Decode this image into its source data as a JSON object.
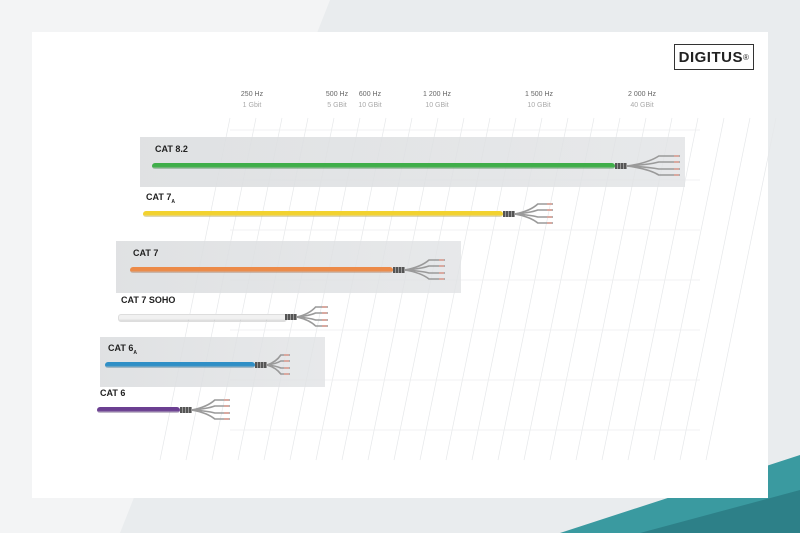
{
  "brand": {
    "logo": "DIGITUS",
    "registered": "®"
  },
  "colors": {
    "teal": "#3a9aa0",
    "background": "#e9ecee"
  },
  "chart_data": {
    "type": "bar",
    "title": "",
    "xlabel": "",
    "ylabel": "",
    "axis_ticks": [
      {
        "hz": "250 Hz",
        "rate": "1 Gbit"
      },
      {
        "hz": "500 Hz",
        "rate": "5 GBit"
      },
      {
        "hz": "600 Hz",
        "rate": "10 GBit"
      },
      {
        "hz": "1 200 Hz",
        "rate": "10 GBit"
      },
      {
        "hz": "1 500 Hz",
        "rate": "10 GBit"
      },
      {
        "hz": "2 000 Hz",
        "rate": "40 GBit"
      }
    ],
    "categories": [
      {
        "label": "CAT 8.2",
        "sub": "",
        "value": 2000,
        "color": "#3fae49",
        "shaded": true
      },
      {
        "label": "CAT 7",
        "sub": "A",
        "value": 1500,
        "color": "#f2d22e",
        "shaded": false
      },
      {
        "label": "CAT 7",
        "sub": "",
        "value": 1200,
        "color": "#ec8a48",
        "shaded": true
      },
      {
        "label": "CAT 7 SOHO",
        "sub": "",
        "value": 600,
        "color": "#f1f1f1",
        "shaded": false
      },
      {
        "label": "CAT 6",
        "sub": "A",
        "value": 500,
        "color": "#2f8fc6",
        "shaded": true
      },
      {
        "label": "CAT 6",
        "sub": "",
        "value": 250,
        "color": "#6b3f91",
        "shaded": false
      }
    ]
  }
}
